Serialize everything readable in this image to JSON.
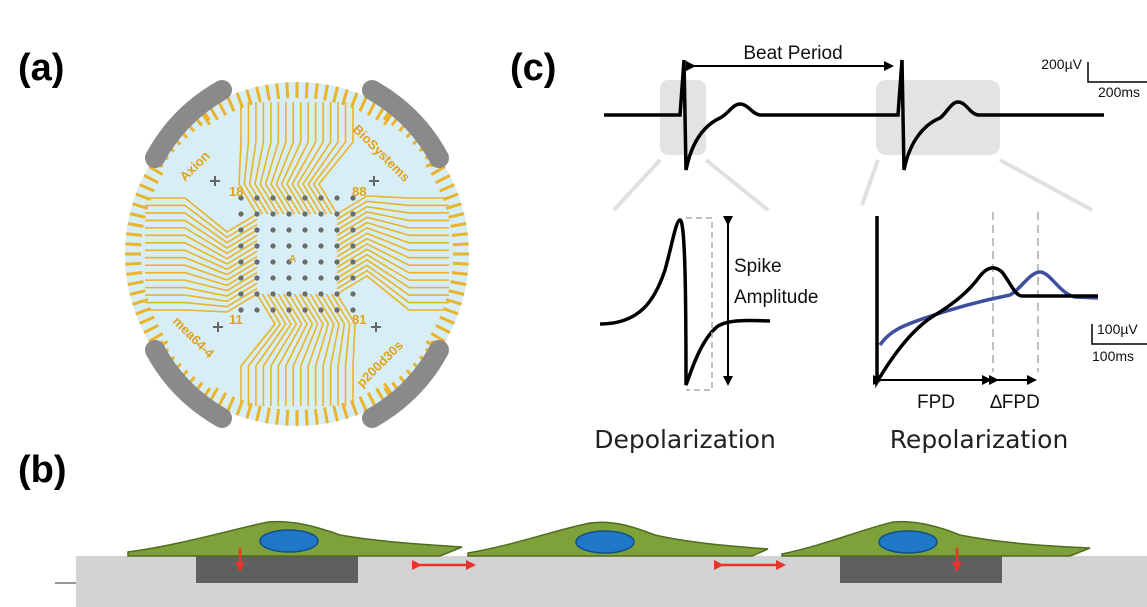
{
  "panels": {
    "a": {
      "label": "(a)",
      "chip": {
        "brand_left": "Axion",
        "brand_right": "BioSystems",
        "model_left": "mea64-4",
        "model_right": "p200d30s",
        "numbers": [
          "18",
          "88",
          "11",
          "81"
        ],
        "center_mark": "A"
      }
    },
    "b": {
      "label": "(b)"
    },
    "c": {
      "label": "(c)",
      "beat_period_label": "Beat Period",
      "scale_top": {
        "voltage": "200µV",
        "time": "200ms"
      },
      "spike_amplitude_label": [
        "Spike",
        "Amplitude"
      ],
      "scale_right": {
        "voltage": "100µV",
        "time": "100ms"
      },
      "fpd_label": "FPD",
      "dfpd_label": "∆FPD",
      "caption_left": "Depolarization",
      "caption_right": "Repolarization"
    }
  },
  "colors": {
    "electrode_gold": "#e9b32a",
    "chip_bg": "#d8eef6",
    "ground_gray": "#8a8a8a",
    "cell_green": "#7ea13a",
    "nucleus_blue": "#1f78c8",
    "arrow_red": "#e8342a",
    "trace_blue": "#3d4f9e",
    "highlight_gray": "#e3e3e3"
  }
}
